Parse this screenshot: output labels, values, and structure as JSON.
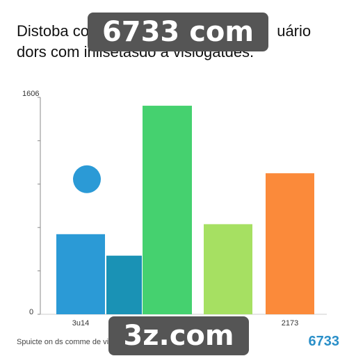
{
  "header": {
    "title_line1": "Distoba co",
    "title_line1_tail": "uário",
    "title_line2": "dors com inilsetasdo a visiogatdes."
  },
  "watermarks": {
    "top": "6733 com",
    "bottom": "3z.com"
  },
  "footer": {
    "note": "Spuicte on ds comme de vi",
    "brand": "6733"
  },
  "chart_data": {
    "type": "bar",
    "title": "",
    "xlabel": "",
    "ylabel": "",
    "ylim": [
      0,
      1606
    ],
    "y_tick_labels": [
      "1606",
      "0"
    ],
    "categories": [
      "3u14",
      "",
      "",
      "",
      "2173"
    ],
    "values": [
      593,
      434,
      1544,
      667,
      1044
    ],
    "colors": [
      "#2b9ad6",
      "#1a92b5",
      "#45d16f",
      "#a6e062",
      "#fb8a3a"
    ],
    "marker": {
      "category_index": 0,
      "value": 1000,
      "color": "#2b9ad6"
    },
    "grid": false
  }
}
